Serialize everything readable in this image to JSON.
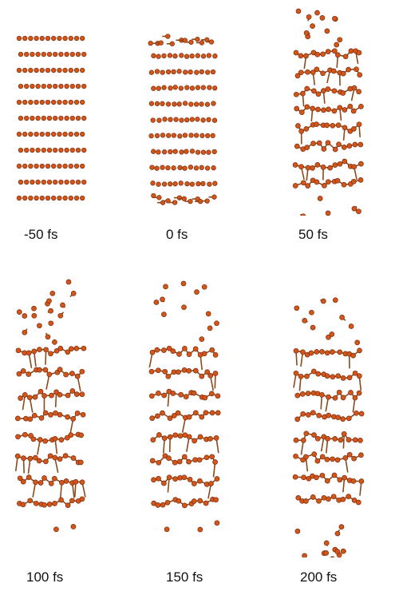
{
  "figure": {
    "atom_color": "#d2561c",
    "atom_edge_color": "#7a2b08",
    "bond_color": "#8a4a1c",
    "panels": [
      {
        "label": "-50 fs",
        "state": "ordered"
      },
      {
        "label": "0 fs",
        "state": "slightly-perturbed"
      },
      {
        "label": "50 fs",
        "state": "disordered"
      },
      {
        "label": "100 fs",
        "state": "disordered"
      },
      {
        "label": "150 fs",
        "state": "disordered"
      },
      {
        "label": "200 fs",
        "state": "disordered"
      }
    ]
  }
}
